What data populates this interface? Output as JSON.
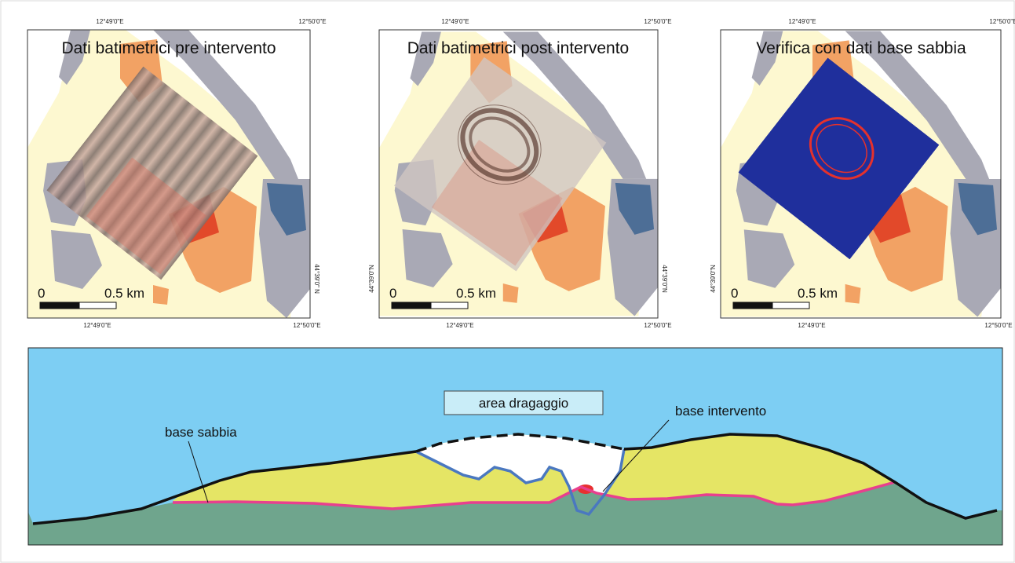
{
  "panels": [
    {
      "title": "Dati batimetrici pre intervento",
      "top_labels": [
        "12°49'0\"E",
        "12°50'0\"E"
      ],
      "bottom_labels": [
        "12°49'0\"E",
        "12°50'0\"E"
      ],
      "side_labels": [
        "44°39'0\" N"
      ],
      "scale": [
        "0",
        "0.5 km"
      ]
    },
    {
      "title": "Dati batimetrici post intervento",
      "top_labels": [
        "12°49'0\"E",
        "12°50'0\"E"
      ],
      "bottom_labels": [
        "12°49'0\"E",
        "12°50'0\"E"
      ],
      "side_labels": [
        "44°39'0\"N",
        "44°39'0\"N"
      ],
      "scale": [
        "0",
        "0.5 km"
      ]
    },
    {
      "title": "Verifica con dati base sabbia",
      "top_labels": [
        "12°49'0\"E",
        "12°50'0\"E"
      ],
      "bottom_labels": [
        "12°49'0\"E",
        "12°50'0\"E"
      ],
      "side_labels": [
        "44°39'0\"N"
      ],
      "scale": [
        "0",
        "0.5 km"
      ]
    }
  ],
  "section": {
    "area": "area dragaggio",
    "base_intervento": "base intervento",
    "base_sabbia": "base sabbia"
  }
}
